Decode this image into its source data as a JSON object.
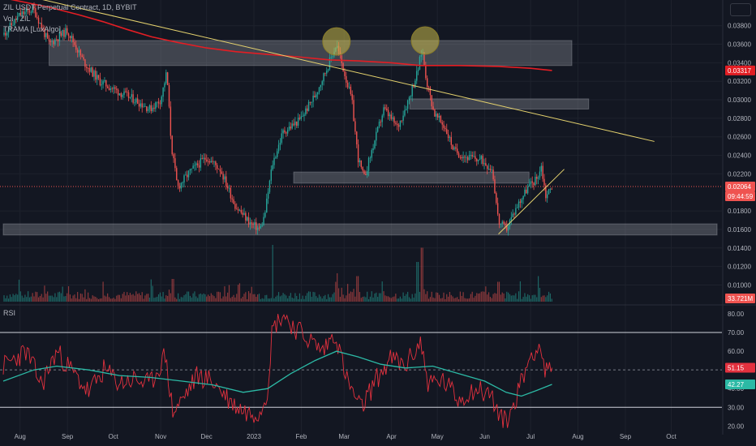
{
  "legend": {
    "symbol_line": "ZIL USDT Perpetual Contract, 1D, BYBIT",
    "volume_line": "Vol · ZIL",
    "indicator_line": "TRAMA [LuxAlgo]"
  },
  "rsi_panel": {
    "label": "RSI"
  },
  "colors": {
    "background": "#131722",
    "grid": "#1e222d",
    "up": "#26a69a",
    "down": "#ef5350",
    "trama": "#e31e24",
    "trendline": "#e6d36e",
    "zone": "#9598a1",
    "rsi_line": "#e3313e",
    "rsi_ma": "#2cb9a5",
    "highlight_circle": "#c8b94a"
  },
  "chart_data": [
    {
      "type": "candlestick",
      "title": "ZIL USDT Perpetual Contract, 1D, BYBIT",
      "x_tick_labels": [
        "Aug",
        "Sep",
        "Oct",
        "Nov",
        "Dec",
        "2023",
        "Feb",
        "Mar",
        "Apr",
        "May",
        "Jun",
        "Jul",
        "Aug",
        "Sep",
        "Oct"
      ],
      "y_tick_labels": [
        "0.03800",
        "0.03600",
        "0.03400",
        "0.03200",
        "0.03000",
        "0.02800",
        "0.02600",
        "0.02400",
        "0.02200",
        "0.01800",
        "0.01600",
        "0.01400",
        "0.01200",
        "0.01000"
      ],
      "ylim": [
        0.0082,
        0.0399
      ],
      "price_badges": [
        {
          "value": "0.03317",
          "color": "#e31e24"
        },
        {
          "value": "0.02064",
          "color": "#ef5350"
        },
        {
          "value": "09:44:59",
          "color": "#ef5350"
        },
        {
          "value": "33.721M",
          "color": "#ef5350"
        }
      ],
      "current_price": 0.02064,
      "close_path": [
        [
          "Jul 21 2022",
          0.037
        ],
        [
          "Aug 01 2022",
          0.0392
        ],
        [
          "Aug 10 2022",
          0.0398
        ],
        [
          "Aug 20 2022",
          0.036
        ],
        [
          "Sep 01 2022",
          0.0375
        ],
        [
          "Sep 12 2022",
          0.034
        ],
        [
          "Sep 22 2022",
          0.032
        ],
        [
          "Oct 05 2022",
          0.0308
        ],
        [
          "Oct 15 2022",
          0.03
        ],
        [
          "Oct 25 2022",
          0.029
        ],
        [
          "Nov 01 2022",
          0.03
        ],
        [
          "Nov 05 2022",
          0.033
        ],
        [
          "Nov 08 2022",
          0.025
        ],
        [
          "Nov 12 2022",
          0.0205
        ],
        [
          "Nov 20 2022",
          0.0222
        ],
        [
          "Dec 01 2022",
          0.0238
        ],
        [
          "Dec 10 2022",
          0.0225
        ],
        [
          "Dec 20 2022",
          0.0185
        ],
        [
          "Dec 30 2022",
          0.0166
        ],
        [
          "Jan 05 2023",
          0.016
        ],
        [
          "Jan 08 2023",
          0.0175
        ],
        [
          "Jan 13 2023",
          0.023
        ],
        [
          "Jan 20 2023",
          0.0265
        ],
        [
          "Jan 31 2023",
          0.0278
        ],
        [
          "Feb 10 2023",
          0.0305
        ],
        [
          "Feb 18 2023",
          0.0335
        ],
        [
          "Feb 24 2023",
          0.036
        ],
        [
          "Mar 01 2023",
          0.033
        ],
        [
          "Mar 06 2023",
          0.03
        ],
        [
          "Mar 10 2023",
          0.0238
        ],
        [
          "Mar 14 2023",
          0.0215
        ],
        [
          "Mar 20 2023",
          0.025
        ],
        [
          "Mar 27 2023",
          0.029
        ],
        [
          "Apr 05 2023",
          0.027
        ],
        [
          "Apr 12 2023",
          0.03
        ],
        [
          "Apr 18 2023",
          0.033
        ],
        [
          "Apr 21 2023",
          0.0355
        ],
        [
          "Apr 24 2023",
          0.032
        ],
        [
          "Apr 29 2023",
          0.0285
        ],
        [
          "May 06 2023",
          0.027
        ],
        [
          "May 12 2023",
          0.0245
        ],
        [
          "May 20 2023",
          0.0238
        ],
        [
          "May 30 2023",
          0.0235
        ],
        [
          "Jun 06 2023",
          0.0225
        ],
        [
          "Jun 10 2023",
          0.0168
        ],
        [
          "Jun 15 2023",
          0.016
        ],
        [
          "Jun 22 2023",
          0.0185
        ],
        [
          "Jun 29 2023",
          0.0205
        ],
        [
          "Jul 05 2023",
          0.0215
        ],
        [
          "Jul 08 2023",
          0.0228
        ],
        [
          "Jul 11 2023",
          0.0196
        ],
        [
          "Jul 15 2023",
          0.02064
        ]
      ],
      "trama_path": [
        [
          "Jul 21 2022",
          0.041
        ],
        [
          "Aug 20 2022",
          0.04
        ],
        [
          "Sep 08 2022",
          0.0392
        ],
        [
          "Sep 25 2022",
          0.0384
        ],
        [
          "Oct 10 2022",
          0.0376
        ],
        [
          "Oct 26 2022",
          0.0368
        ],
        [
          "Nov 12 2022",
          0.0362
        ],
        [
          "Dec 01 2022",
          0.0356
        ],
        [
          "Dec 20 2022",
          0.0352
        ],
        [
          "Jan 10 2023",
          0.0349
        ],
        [
          "Feb 01 2023",
          0.0346
        ],
        [
          "Feb 20 2023",
          0.0343
        ],
        [
          "Mar 10 2023",
          0.0342
        ],
        [
          "Apr 01 2023",
          0.034
        ],
        [
          "Apr 20 2023",
          0.0337
        ],
        [
          "May 15 2023",
          0.0337
        ],
        [
          "Jun 10 2023",
          0.0336
        ],
        [
          "Jul 01 2023",
          0.0334
        ],
        [
          "Jul 15 2023",
          0.03317
        ]
      ],
      "trendlines": [
        {
          "points": [
            [
              "Jul 21 2022",
              0.0418
            ],
            [
              "Sep 20 2023",
              0.0255
            ]
          ]
        },
        {
          "points": [
            [
              "Jun 10 2023",
              0.0155
            ],
            [
              "Jul 23 2023",
              0.0225
            ]
          ]
        }
      ],
      "zones": [
        {
          "x": [
            "Aug 20 2022",
            "Jul 28 2023"
          ],
          "y": [
            0.0337,
            0.0364
          ]
        },
        {
          "x": [
            "Apr 13 2023",
            "Aug 08 2023"
          ],
          "y": [
            0.029,
            0.0301
          ]
        },
        {
          "x": [
            "Jan 27 2023",
            "Jun 30 2023"
          ],
          "y": [
            0.021,
            0.0222
          ]
        },
        {
          "x": [
            "Jul 21 2022",
            "Oct 31 2023"
          ],
          "y": [
            0.0154,
            0.0166
          ]
        }
      ],
      "highlight_circles": [
        {
          "x": "Feb 24 2023",
          "y": 0.0363
        },
        {
          "x": "Apr 23 2023",
          "y": 0.0364
        }
      ],
      "volume_spikes": [
        {
          "x": "Jan 13 2023",
          "height": 1.0
        },
        {
          "x": "Apr 21 2023",
          "height": 0.95
        },
        {
          "x": "Apr 18 2023",
          "height": 0.7
        },
        {
          "x": "Feb 24 2023",
          "height": 0.5
        },
        {
          "x": "Mar 10 2023",
          "height": 0.45
        },
        {
          "x": "Nov 09 2022",
          "height": 0.4
        },
        {
          "x": "Jun 10 2023",
          "height": 0.35
        },
        {
          "x": "Jul 07 2023",
          "height": 0.45
        }
      ]
    },
    {
      "type": "line",
      "title": "RSI",
      "y_tick_labels": [
        "80.00",
        "70.00",
        "60.00",
        "40.00",
        "30.00",
        "20.00"
      ],
      "ylim": [
        18,
        83
      ],
      "bands": [
        70,
        30
      ],
      "midline": 50,
      "badges": [
        {
          "value": "51.15",
          "color": "#e3313e"
        },
        {
          "value": "42.27",
          "color": "#2cb9a5"
        }
      ],
      "rsi_path": [
        [
          "Jul 21 2022",
          52
        ],
        [
          "Aug 05 2022",
          60
        ],
        [
          "Aug 15 2022",
          42
        ],
        [
          "Aug 25 2022",
          60
        ],
        [
          "Sep 05 2022",
          48
        ],
        [
          "Sep 15 2022",
          38
        ],
        [
          "Sep 25 2022",
          50
        ],
        [
          "Oct 05 2022",
          43
        ],
        [
          "Oct 15 2022",
          45
        ],
        [
          "Oct 25 2022",
          42
        ],
        [
          "Nov 04 2022",
          58
        ],
        [
          "Nov 09 2022",
          27
        ],
        [
          "Nov 15 2022",
          34
        ],
        [
          "Nov 25 2022",
          47
        ],
        [
          "Dec 05 2022",
          44
        ],
        [
          "Dec 18 2022",
          32
        ],
        [
          "Dec 28 2022",
          27
        ],
        [
          "Jan 05 2023",
          28
        ],
        [
          "Jan 10 2023",
          40
        ],
        [
          "Jan 13 2023",
          72
        ],
        [
          "Jan 20 2023",
          80
        ],
        [
          "Jan 27 2023",
          73
        ],
        [
          "Feb 05 2023",
          67
        ],
        [
          "Feb 15 2023",
          60
        ],
        [
          "Feb 23 2023",
          70
        ],
        [
          "Mar 03 2023",
          44
        ],
        [
          "Mar 12 2023",
          29
        ],
        [
          "Mar 22 2023",
          45
        ],
        [
          "Apr 01 2023",
          56
        ],
        [
          "Apr 10 2023",
          52
        ],
        [
          "Apr 20 2023",
          65
        ],
        [
          "Apr 25 2023",
          43
        ],
        [
          "May 05 2023",
          44
        ],
        [
          "May 15 2023",
          34
        ],
        [
          "May 25 2023",
          40
        ],
        [
          "Jun 05 2023",
          37
        ],
        [
          "Jun 11 2023",
          24
        ],
        [
          "Jun 16 2023",
          22
        ],
        [
          "Jun 25 2023",
          44
        ],
        [
          "Jul 02 2023",
          60
        ],
        [
          "Jul 07 2023",
          63
        ],
        [
          "Jul 11 2023",
          48
        ],
        [
          "Jul 15 2023",
          51.15
        ]
      ],
      "ma_path": [
        [
          "Jul 21 2022",
          44
        ],
        [
          "Aug 10 2022",
          50
        ],
        [
          "Aug 25 2022",
          52
        ],
        [
          "Sep 15 2022",
          50
        ],
        [
          "Oct 05 2022",
          47
        ],
        [
          "Oct 25 2022",
          46
        ],
        [
          "Nov 15 2022",
          44
        ],
        [
          "Dec 05 2022",
          42
        ],
        [
          "Dec 25 2022",
          38
        ],
        [
          "Jan 10 2023",
          40
        ],
        [
          "Jan 25 2023",
          48
        ],
        [
          "Feb 10 2023",
          55
        ],
        [
          "Feb 24 2023",
          60
        ],
        [
          "Mar 10 2023",
          57
        ],
        [
          "Mar 25 2023",
          53
        ],
        [
          "Apr 10 2023",
          51
        ],
        [
          "Apr 28 2023",
          52
        ],
        [
          "May 15 2023",
          48
        ],
        [
          "Jun 01 2023",
          44
        ],
        [
          "Jun 15 2023",
          38
        ],
        [
          "Jun 25 2023",
          36
        ],
        [
          "Jul 05 2023",
          39
        ],
        [
          "Jul 15 2023",
          42.27
        ]
      ]
    }
  ]
}
